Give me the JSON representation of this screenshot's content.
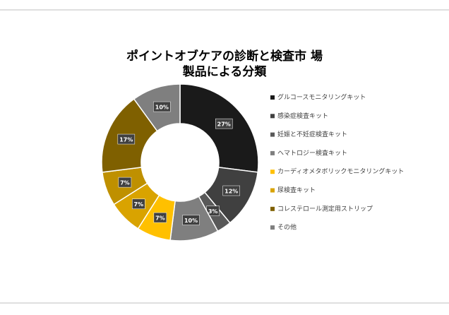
{
  "chart_data": {
    "type": "donut",
    "title": [
      "ポイントオブケアの診断と検査市 場",
      "製品による分類"
    ],
    "categories": [
      "グルコースモニタリングキット",
      "感染症検査キット",
      "妊娠と不妊症検査キット",
      "ヘマトロジー検査キット",
      "カーディオメタボリックモニタリングキット",
      "尿検査キット",
      null,
      "コレステロール測定用ストリップ",
      "その他"
    ],
    "values": [
      27,
      12,
      3,
      10,
      7,
      7,
      7,
      17,
      10
    ],
    "value_labels": [
      "27%",
      "12%",
      "3%",
      "10%",
      "7%",
      "7%",
      "7%",
      "17%",
      "10%"
    ],
    "colors": [
      "#1a1a1a",
      "#404040",
      "#595959",
      "#7f7f7f",
      "#ffc000",
      "#d9a300",
      "#bf9000",
      "#7f6000",
      "#7f7f7f"
    ],
    "legend": "right"
  }
}
